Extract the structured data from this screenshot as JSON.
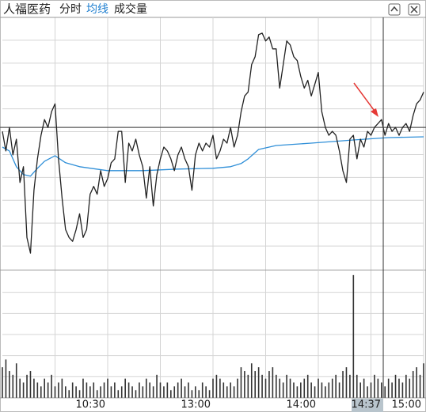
{
  "chart_data": {
    "type": "line",
    "title": "人福医药",
    "tabs": [
      "分时",
      "均线",
      "成交量"
    ],
    "xlim": [
      0,
      240
    ],
    "ylim": [
      0,
      320
    ],
    "xticks": [
      {
        "value": 60,
        "label": "10:30"
      },
      {
        "value": 120,
        "label": "13:00"
      },
      {
        "value": 180,
        "label": "14:00"
      },
      {
        "value": 240,
        "label": "15:00"
      }
    ],
    "reference": 180,
    "cursor": {
      "value": 217,
      "label": "14:37"
    },
    "x": [
      0,
      2,
      4,
      6,
      8,
      10,
      12,
      14,
      16,
      18,
      20,
      22,
      24,
      26,
      28,
      30,
      32,
      34,
      36,
      38,
      40,
      42,
      44,
      46,
      48,
      50,
      52,
      54,
      56,
      58,
      60,
      62,
      64,
      66,
      68,
      70,
      72,
      74,
      76,
      78,
      80,
      82,
      84,
      86,
      88,
      90,
      92,
      94,
      96,
      98,
      100,
      102,
      104,
      106,
      108,
      110,
      112,
      114,
      116,
      118,
      120,
      122,
      124,
      126,
      128,
      130,
      132,
      134,
      136,
      138,
      140,
      142,
      144,
      146,
      148,
      150,
      152,
      154,
      156,
      158,
      160,
      162,
      164,
      166,
      168,
      170,
      172,
      174,
      176,
      178,
      180,
      182,
      184,
      186,
      188,
      190,
      192,
      194,
      196,
      198,
      200,
      202,
      204,
      206,
      208,
      210,
      212,
      214,
      216,
      218,
      220,
      222,
      224,
      226,
      228,
      230,
      232,
      234,
      236,
      238,
      240
    ],
    "series": [
      {
        "color": "#222222",
        "values": [
          175,
          150,
          180,
          145,
          165,
          110,
          130,
          40,
          20,
          100,
          140,
          170,
          190,
          180,
          200,
          210,
          140,
          90,
          50,
          40,
          35,
          50,
          70,
          40,
          50,
          95,
          105,
          95,
          125,
          105,
          115,
          135,
          140,
          175,
          175,
          110,
          160,
          150,
          165,
          145,
          130,
          90,
          130,
          80,
          120,
          140,
          155,
          150,
          140,
          125,
          145,
          155,
          140,
          130,
          100,
          145,
          160,
          150,
          160,
          155,
          170,
          140,
          150,
          165,
          160,
          180,
          155,
          170,
          200,
          220,
          225,
          260,
          270,
          298,
          300,
          290,
          295,
          280,
          280,
          230,
          260,
          290,
          285,
          270,
          265,
          245,
          230,
          240,
          220,
          235,
          250,
          200,
          180,
          170,
          175,
          170,
          150,
          125,
          110,
          165,
          170,
          140,
          165,
          155,
          175,
          170,
          180,
          185,
          190,
          170,
          185,
          175,
          180,
          170,
          180,
          185,
          175,
          195,
          210,
          215,
          225
        ]
      },
      {
        "color": "#2f8fd8",
        "x": [
          0,
          4,
          8,
          12,
          16,
          20,
          24,
          30,
          36,
          44,
          60,
          80,
          100,
          120,
          130,
          136,
          140,
          146,
          156,
          176,
          200,
          220,
          240
        ],
        "values": [
          155,
          150,
          130,
          120,
          118,
          128,
          137,
          144,
          135,
          130,
          125,
          125,
          127,
          128,
          130,
          134,
          140,
          152,
          157,
          160,
          164,
          167,
          168
        ]
      }
    ],
    "volume": {
      "color": "#333333",
      "ylim": [
        0,
        165
      ],
      "values": [
        40,
        50,
        35,
        30,
        45,
        25,
        20,
        30,
        35,
        25,
        20,
        15,
        25,
        20,
        30,
        15,
        20,
        25,
        15,
        10,
        20,
        15,
        10,
        25,
        20,
        15,
        20,
        10,
        15,
        20,
        25,
        15,
        20,
        10,
        15,
        25,
        20,
        15,
        10,
        20,
        15,
        25,
        20,
        15,
        30,
        20,
        15,
        20,
        10,
        15,
        20,
        25,
        15,
        20,
        10,
        15,
        10,
        20,
        15,
        10,
        25,
        30,
        25,
        20,
        15,
        20,
        15,
        25,
        40,
        35,
        30,
        45,
        35,
        40,
        30,
        25,
        35,
        40,
        30,
        25,
        20,
        30,
        25,
        20,
        15,
        20,
        25,
        30,
        20,
        15,
        25,
        20,
        15,
        20,
        25,
        30,
        20,
        35,
        40,
        30,
        160,
        30,
        20,
        25,
        15,
        20,
        30,
        25,
        20,
        15,
        25,
        20,
        30,
        25,
        20,
        30,
        25,
        35,
        40,
        30,
        45
      ]
    }
  }
}
